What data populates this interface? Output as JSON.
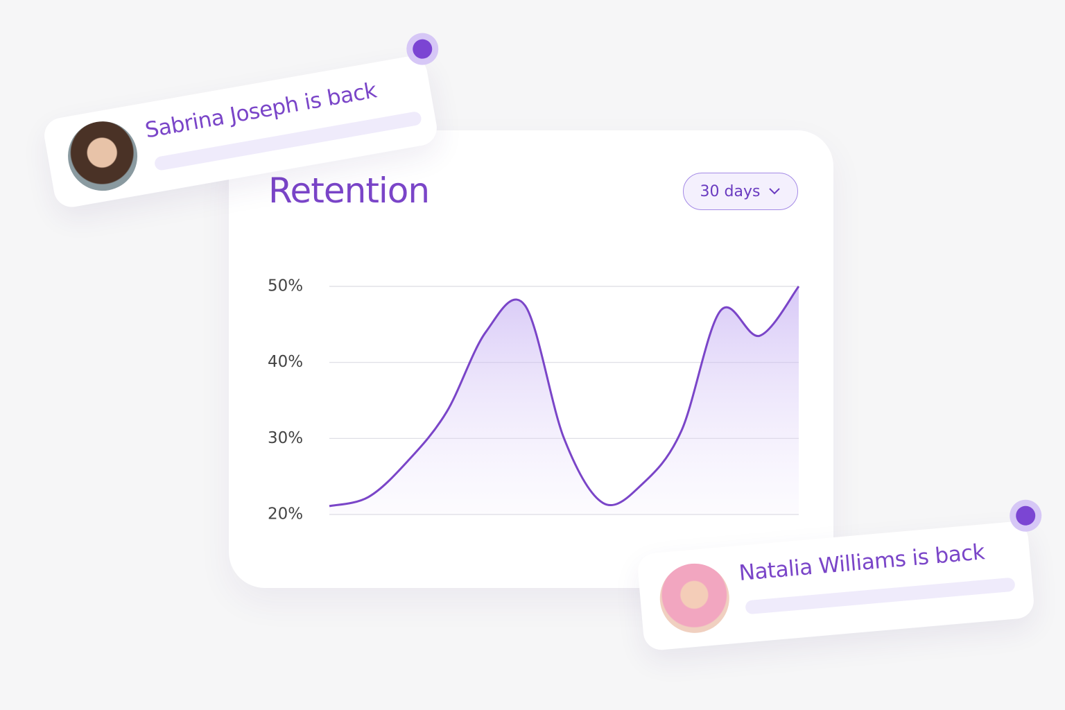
{
  "card": {
    "title": "Retention",
    "range_button": "30 days"
  },
  "chart_data": {
    "type": "line",
    "categories": [
      null,
      null,
      null,
      null,
      null,
      null,
      null,
      null,
      null,
      null,
      null,
      null,
      null
    ],
    "series": [
      {
        "color": "#7a45c8",
        "values": [
          21.1,
          22.3,
          27,
          33.5,
          44,
          47.5,
          30,
          21.5,
          24,
          31,
          46.8,
          43.5,
          50
        ]
      }
    ],
    "ylim": [
      20,
      50
    ],
    "yticks": [
      {
        "value": 20,
        "label": "20%"
      },
      {
        "value": 30,
        "label": "30%"
      },
      {
        "value": 40,
        "label": "40%"
      },
      {
        "value": 50,
        "label": "50%"
      }
    ],
    "grid": true,
    "area_fill": true
  },
  "notifications": [
    {
      "text": "Sabrina Joseph is back"
    },
    {
      "text": "Natalia Williams is back"
    }
  ]
}
